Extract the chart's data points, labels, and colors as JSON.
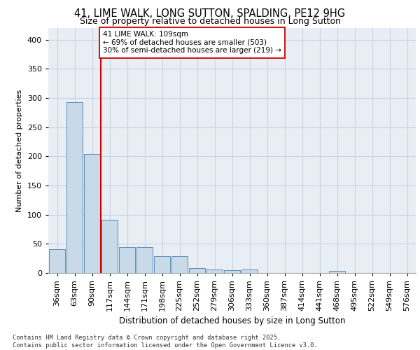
{
  "title1": "41, LIME WALK, LONG SUTTON, SPALDING, PE12 9HG",
  "title2": "Size of property relative to detached houses in Long Sutton",
  "xlabel": "Distribution of detached houses by size in Long Sutton",
  "ylabel": "Number of detached properties",
  "categories": [
    "36sqm",
    "63sqm",
    "90sqm",
    "117sqm",
    "144sqm",
    "171sqm",
    "198sqm",
    "225sqm",
    "252sqm",
    "279sqm",
    "306sqm",
    "333sqm",
    "360sqm",
    "387sqm",
    "414sqm",
    "441sqm",
    "468sqm",
    "495sqm",
    "522sqm",
    "549sqm",
    "576sqm"
  ],
  "values": [
    41,
    293,
    204,
    91,
    45,
    44,
    29,
    29,
    8,
    6,
    5,
    6,
    0,
    0,
    0,
    0,
    4,
    0,
    0,
    0,
    0
  ],
  "bar_color": "#c8d9e8",
  "bar_edge_color": "#5b8db8",
  "vline_color": "#cc0000",
  "annotation_text": "41 LIME WALK: 109sqm\n← 69% of detached houses are smaller (503)\n30% of semi-detached houses are larger (219) →",
  "annotation_box_color": "#ffffff",
  "annotation_box_edge": "#cc0000",
  "grid_color": "#c8d4e0",
  "background_color": "#e8eef4",
  "footer": "Contains HM Land Registry data © Crown copyright and database right 2025.\nContains public sector information licensed under the Open Government Licence v3.0.",
  "ylim": [
    0,
    420
  ],
  "yticks": [
    0,
    50,
    100,
    150,
    200,
    250,
    300,
    350,
    400
  ]
}
